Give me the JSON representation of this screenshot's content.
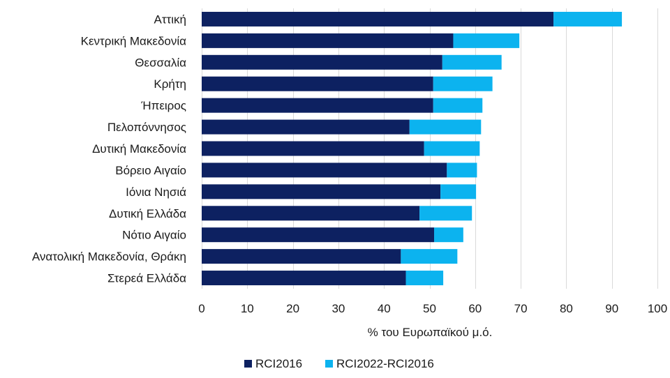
{
  "chart_data": {
    "type": "bar",
    "orientation": "horizontal",
    "stacked": true,
    "categories": [
      "Αττική",
      "Κεντρική Μακεδονία",
      "Θεσσαλία",
      "Κρήτη",
      "Ήπειρος",
      "Πελοπόννησος",
      "Δυτική Μακεδονία",
      "Βόρειο Αιγαίο",
      "Ιόνια Νησιά",
      "Δυτική Ελλάδα",
      "Νότιο Αιγαίο",
      "Ανατολική Μακεδονία, Θράκη",
      "Στερεά Ελλάδα"
    ],
    "series": [
      {
        "name": "RCI2016",
        "color": "#0d2161",
        "values": [
          77.2,
          55.2,
          52.8,
          50.8,
          50.8,
          45.6,
          48.8,
          53.8,
          52.4,
          47.8,
          51.0,
          43.7,
          44.8
        ]
      },
      {
        "name": "RCI2022-RCI2016",
        "color": "#0cb3ef",
        "values": [
          15.0,
          14.5,
          13.0,
          13.0,
          10.8,
          15.7,
          12.2,
          6.6,
          7.8,
          11.5,
          6.4,
          12.4,
          8.2
        ]
      }
    ],
    "xlabel": "% του Ευρωπαϊκού μ.ό.",
    "xlim": [
      0,
      100
    ],
    "xticks": [
      0,
      10,
      20,
      30,
      40,
      50,
      60,
      70,
      80,
      90,
      100
    ],
    "grid": true,
    "legend_position": "bottom"
  }
}
